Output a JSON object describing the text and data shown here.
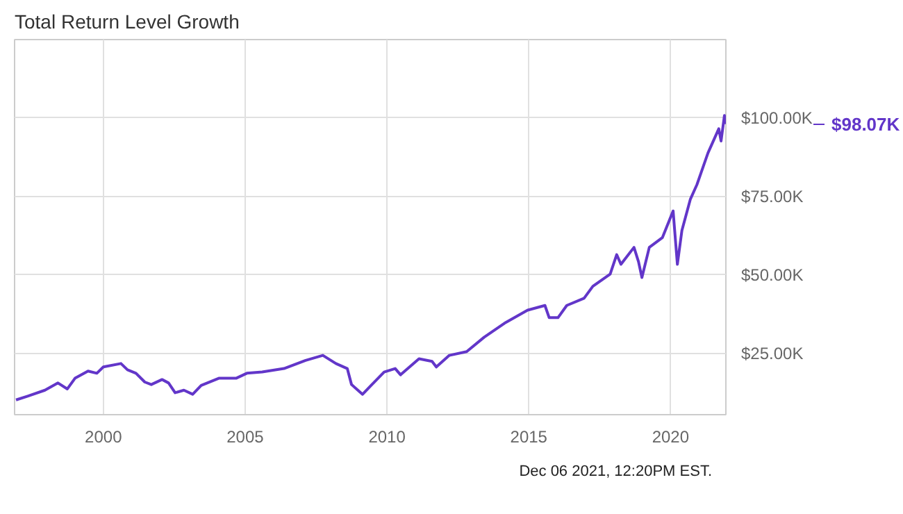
{
  "chart_data": {
    "type": "line",
    "title": "Total Return Level Growth",
    "x": [
      1996.92,
      1997.33,
      1997.94,
      1998.4,
      1998.73,
      1999.0,
      1999.46,
      1999.77,
      2000.0,
      2000.62,
      2000.85,
      2001.15,
      2001.46,
      2001.69,
      2002.07,
      2002.3,
      2002.53,
      2002.84,
      2003.15,
      2003.45,
      2004.07,
      2004.68,
      2005.06,
      2005.6,
      2006.37,
      2007.13,
      2007.74,
      2008.2,
      2008.6,
      2008.75,
      2009.14,
      2009.44,
      2009.9,
      2010.29,
      2010.48,
      2011.13,
      2011.59,
      2011.74,
      2012.2,
      2012.81,
      2013.43,
      2014.19,
      2014.96,
      2015.57,
      2015.72,
      2016.03,
      2016.34,
      2016.95,
      2017.26,
      2017.87,
      2018.1,
      2018.25,
      2018.71,
      2018.87,
      2018.99,
      2019.25,
      2019.71,
      2020.09,
      2020.24,
      2020.4,
      2020.7,
      2020.93,
      2021.32,
      2021.7,
      2021.78,
      2021.9,
      2021.93
    ],
    "series": [
      {
        "color": "#6236c9",
        "values": [
          10200,
          11400,
          13300,
          15600,
          13700,
          17100,
          19400,
          18700,
          20700,
          21800,
          19800,
          18700,
          15900,
          15100,
          16700,
          15600,
          12500,
          13300,
          12000,
          14800,
          17100,
          17100,
          18700,
          19100,
          20200,
          22800,
          24400,
          21800,
          20200,
          15100,
          12000,
          14800,
          19100,
          20200,
          18200,
          23300,
          22500,
          20700,
          24400,
          25600,
          30200,
          34900,
          38800,
          40300,
          36400,
          36400,
          40300,
          42600,
          46400,
          50300,
          56500,
          53400,
          58800,
          54200,
          49200,
          58800,
          61900,
          70400,
          53400,
          64200,
          74200,
          78800,
          88900,
          96600,
          92700,
          100800,
          98070
        ]
      }
    ],
    "xlim": [
      1996.87,
      2021.95
    ],
    "ylim": [
      5500,
      125000
    ],
    "xticks": [
      2000,
      2005,
      2010,
      2015,
      2020
    ],
    "yticks": [
      {
        "value": 25000,
        "label": "$25.00K"
      },
      {
        "value": 50000,
        "label": "$50.00K"
      },
      {
        "value": 75000,
        "label": "$75.00K"
      },
      {
        "value": 100000,
        "label": "$100.00K"
      }
    ],
    "grid": true,
    "marker": "none",
    "line_style": "solid",
    "annotations": [
      "$98.07K",
      "Dec 06 2021, 12:20PM EST."
    ]
  }
}
